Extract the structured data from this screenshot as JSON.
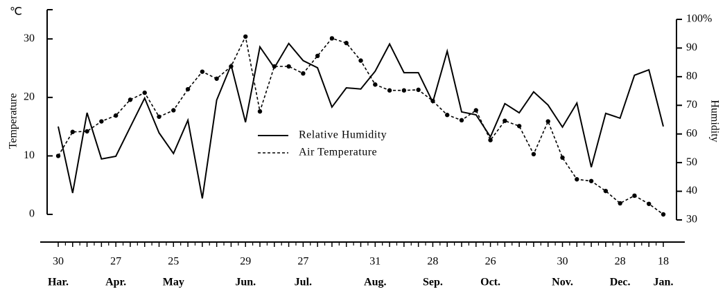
{
  "chart_data": {
    "type": "line",
    "unit": "℃",
    "y_label": "Temperature",
    "y2_label": "Humidity",
    "categories": [
      "30",
      null,
      null,
      null,
      "27",
      null,
      null,
      null,
      "25",
      null,
      null,
      null,
      null,
      "29",
      null,
      null,
      null,
      "27",
      null,
      null,
      null,
      null,
      "31",
      null,
      null,
      null,
      "28",
      null,
      null,
      null,
      "26",
      null,
      null,
      null,
      null,
      "30",
      null,
      null,
      null,
      "28",
      null,
      null,
      "18"
    ],
    "months": [
      "Har.",
      null,
      null,
      null,
      "Apr.",
      null,
      null,
      null,
      "May",
      null,
      null,
      null,
      null,
      "Jun.",
      null,
      null,
      null,
      "Jul.",
      null,
      null,
      null,
      null,
      "Aug.",
      null,
      null,
      null,
      "Sep.",
      null,
      null,
      null,
      "Oct.",
      null,
      null,
      null,
      null,
      "Nov.",
      null,
      null,
      null,
      "Dec.",
      null,
      null,
      "Jan."
    ],
    "series": [
      {
        "name": "Relative Humidity",
        "color": "#000000",
        "style": "solid",
        "markers": false,
        "axis": "y2",
        "values": [
          62.6,
          39.4,
          67.4,
          51.3,
          52.2,
          62.4,
          72.5,
          60.4,
          53.2,
          64.8,
          37.5,
          71.8,
          84.1,
          64.1,
          90.4,
          83.1,
          91.6,
          85.6,
          83.1,
          69.4,
          76.1,
          75.7,
          81.9,
          91.4,
          81.4,
          81.4,
          71.1,
          88.9,
          67.7,
          66.7,
          59.0,
          70.6,
          67.4,
          74.7,
          70.1,
          62.4,
          70.8,
          48.4,
          67.2,
          65.5,
          80.5,
          82.4,
          62.6
        ]
      },
      {
        "name": "Air Temperature",
        "color": "#000000",
        "style": "dashed",
        "markers": true,
        "axis": "y",
        "values": [
          10,
          14.1,
          14.2,
          15.9,
          16.9,
          19.6,
          20.8,
          16.7,
          17.8,
          21.4,
          24.4,
          23.2,
          25.3,
          30.4,
          17.6,
          25.3,
          25.3,
          24.1,
          27.1,
          30.1,
          29.3,
          26.3,
          22.2,
          21.2,
          21.2,
          21.3,
          19.4,
          17,
          16.1,
          17.8,
          12.7,
          16,
          15.1,
          10.3,
          15.9,
          9.7,
          6,
          5.7,
          4,
          1.9,
          3.2,
          1.8,
          0
        ]
      }
    ],
    "ylim": [
      0,
      35
    ],
    "yticks": [
      0,
      10,
      20,
      30
    ],
    "y2lim": [
      30,
      100
    ],
    "y2ticks": [
      30,
      40,
      50,
      60,
      70,
      80,
      90,
      {
        "value": 100,
        "label": "100%"
      }
    ],
    "legend": "center"
  }
}
